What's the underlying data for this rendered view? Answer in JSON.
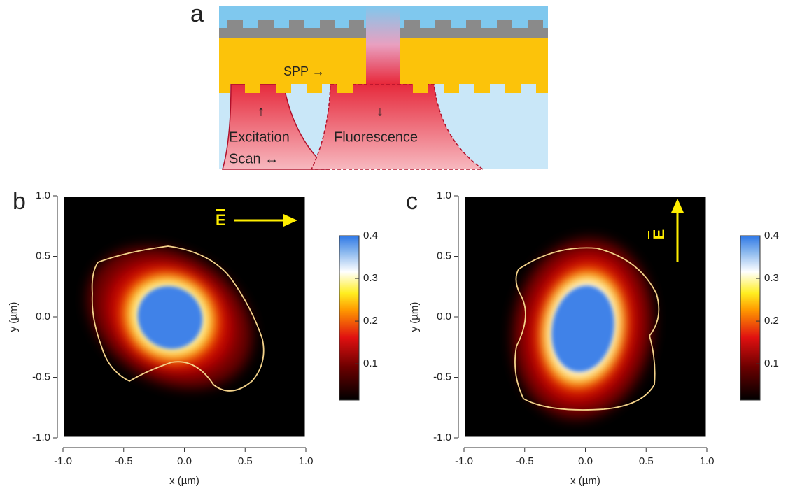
{
  "diagram": {
    "label": "a",
    "texts": [
      "SPP →",
      "↑",
      "↓",
      "Excitation",
      "Fluorescence",
      "Scan ↔"
    ]
  },
  "chart_data": [
    {
      "type": "heatmap",
      "panel_label": "b",
      "xlabel": "x (µm)",
      "ylabel": "y (µm)",
      "annotation": "E",
      "annotation_direction": "right",
      "xlim": [
        -1,
        1
      ],
      "ylim": [
        -1,
        1
      ],
      "xticks": [
        {
          "value": -1,
          "label": "-1.0"
        },
        -0.5,
        {
          "value": 0,
          "label": "0.0"
        },
        0.5,
        {
          "value": 1,
          "label": "1.0"
        }
      ],
      "yticks": [
        {
          "value": -1,
          "label": "-1.0"
        },
        -0.5,
        {
          "value": 0,
          "label": "0.0"
        },
        0.5,
        {
          "value": 1,
          "label": "1.0"
        }
      ],
      "colorbar": {
        "lim": [
          0.015,
          0.4
        ],
        "ticks": [
          0.1,
          0.2,
          0.3,
          0.4
        ]
      }
    },
    {
      "type": "heatmap",
      "panel_label": "c",
      "xlabel": "x (µm)",
      "ylabel": "y (µm)",
      "annotation": "E",
      "annotation_direction": "up",
      "xlim": [
        -1,
        1
      ],
      "ylim": [
        -1,
        1
      ],
      "xticks": [
        {
          "value": -1,
          "label": "-1.0"
        },
        -0.5,
        {
          "value": 0,
          "label": "0.0"
        },
        0.5,
        {
          "value": 1,
          "label": "1.0"
        }
      ],
      "yticks": [
        {
          "value": -1,
          "label": "-1.0"
        },
        -0.5,
        {
          "value": 0,
          "label": "0.0"
        },
        0.5,
        {
          "value": 1,
          "label": "1.0"
        }
      ],
      "colorbar": {
        "lim": [
          0.015,
          0.4
        ],
        "ticks": [
          0.1,
          0.2,
          0.3,
          0.4
        ]
      }
    }
  ]
}
